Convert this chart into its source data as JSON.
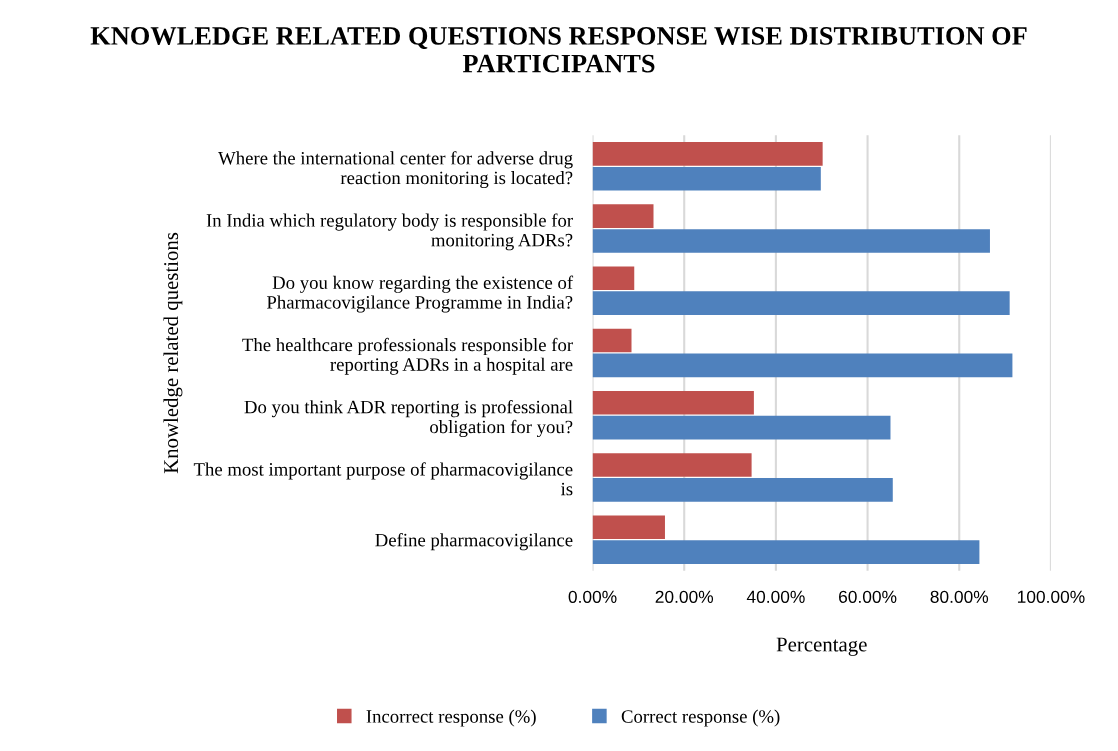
{
  "chart_data": {
    "type": "bar",
    "orientation": "horizontal",
    "title": "KNOWLEDGE RELATED QUESTIONS RESPONSE WISE DISTRIBUTION OF PARTICIPANTS",
    "xlabel": "Percentage",
    "ylabel": "Knowledge related questions",
    "categories": [
      "Where the international center for adverse drug\nreaction monitoring is located?",
      "In India which regulatory body is responsible for\nmonitoring ADRs?",
      "Do you know regarding the existence of\nPharmacovigilance Programme in India?",
      "The healthcare professionals responsible for\nreporting ADRs in a hospital are",
      "Do you think ADR reporting is professional\nobligation for you?",
      "The most important purpose of pharmacovigilance\nis",
      "Define pharmacovigilance"
    ],
    "series": [
      {
        "name": "Incorrect response (%)",
        "color": "#c0504d",
        "values": [
          50.2,
          13.3,
          9.1,
          8.5,
          35.2,
          34.7,
          15.8
        ]
      },
      {
        "name": "Correct response (%)",
        "color": "#4f81bd",
        "values": [
          49.8,
          86.7,
          91.0,
          91.6,
          65.0,
          65.5,
          84.4
        ]
      }
    ],
    "xlim": [
      0,
      100
    ],
    "xticks": [
      {
        "value": 0,
        "label": "0.00%"
      },
      {
        "value": 20,
        "label": "20.00%"
      },
      {
        "value": 40,
        "label": "40.00%"
      },
      {
        "value": 60,
        "label": "60.00%"
      },
      {
        "value": 80,
        "label": "80.00%"
      },
      {
        "value": 100,
        "label": "100.00%"
      }
    ],
    "grid": "x",
    "legend": "bottom"
  }
}
